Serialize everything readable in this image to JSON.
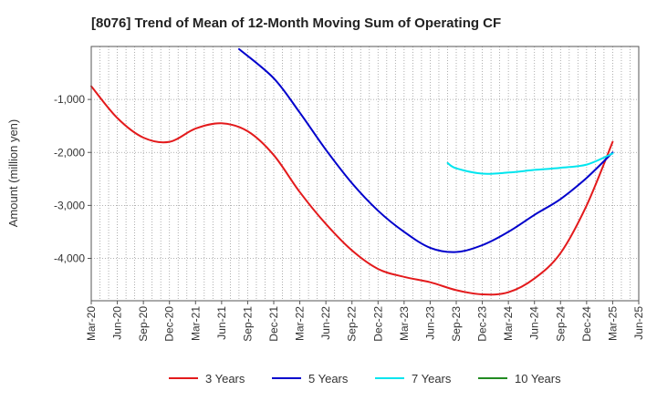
{
  "chart_data": {
    "type": "line",
    "title": "[8076]  Trend of Mean of 12-Month Moving Sum of Operating CF",
    "xlabel": "",
    "ylabel": "Amount (million yen)",
    "ylim": [
      -4800,
      0
    ],
    "y_ticks": [
      -1000,
      -2000,
      -3000,
      -4000
    ],
    "y_tick_labels": [
      "-1,000",
      "-2,000",
      "-3,000",
      "-4,000"
    ],
    "x_tick_labels": [
      "Mar-20",
      "Jun-20",
      "Sep-20",
      "Dec-20",
      "Mar-21",
      "Jun-21",
      "Sep-21",
      "Dec-21",
      "Mar-22",
      "Jun-22",
      "Sep-22",
      "Dec-22",
      "Mar-23",
      "Jun-23",
      "Sep-23",
      "Dec-23",
      "Mar-24",
      "Jun-24",
      "Sep-24",
      "Dec-24",
      "Mar-25",
      "Jun-25"
    ],
    "grid": true,
    "legend_position": "bottom",
    "series": [
      {
        "name": "3 Years",
        "color": "#e31a1c",
        "x_index": [
          0,
          1,
          2,
          3,
          4,
          5,
          6,
          7,
          8,
          9,
          10,
          11,
          12,
          13,
          14,
          15,
          16,
          17,
          18,
          19,
          20
        ],
        "values": [
          -750,
          -1350,
          -1720,
          -1800,
          -1550,
          -1450,
          -1600,
          -2050,
          -2750,
          -3350,
          -3850,
          -4200,
          -4350,
          -4450,
          -4600,
          -4680,
          -4640,
          -4380,
          -3900,
          -3000,
          -1800
        ]
      },
      {
        "name": "5 Years",
        "color": "#0000cc",
        "x_index": [
          5.67,
          7,
          8,
          9,
          10,
          11,
          12,
          13,
          14,
          15,
          16,
          17,
          18,
          19,
          20
        ],
        "values": [
          -50,
          -600,
          -1250,
          -1950,
          -2580,
          -3100,
          -3500,
          -3800,
          -3880,
          -3750,
          -3500,
          -3180,
          -2880,
          -2480,
          -2000
        ]
      },
      {
        "name": "7 Years",
        "color": "#00e5ee",
        "x_index": [
          13.67,
          14,
          15,
          16,
          17,
          18,
          19,
          20
        ],
        "values": [
          -2200,
          -2300,
          -2400,
          -2380,
          -2330,
          -2290,
          -2230,
          -2020
        ]
      },
      {
        "name": "10 Years",
        "color": "#228b22",
        "x_index": [],
        "values": []
      }
    ]
  }
}
